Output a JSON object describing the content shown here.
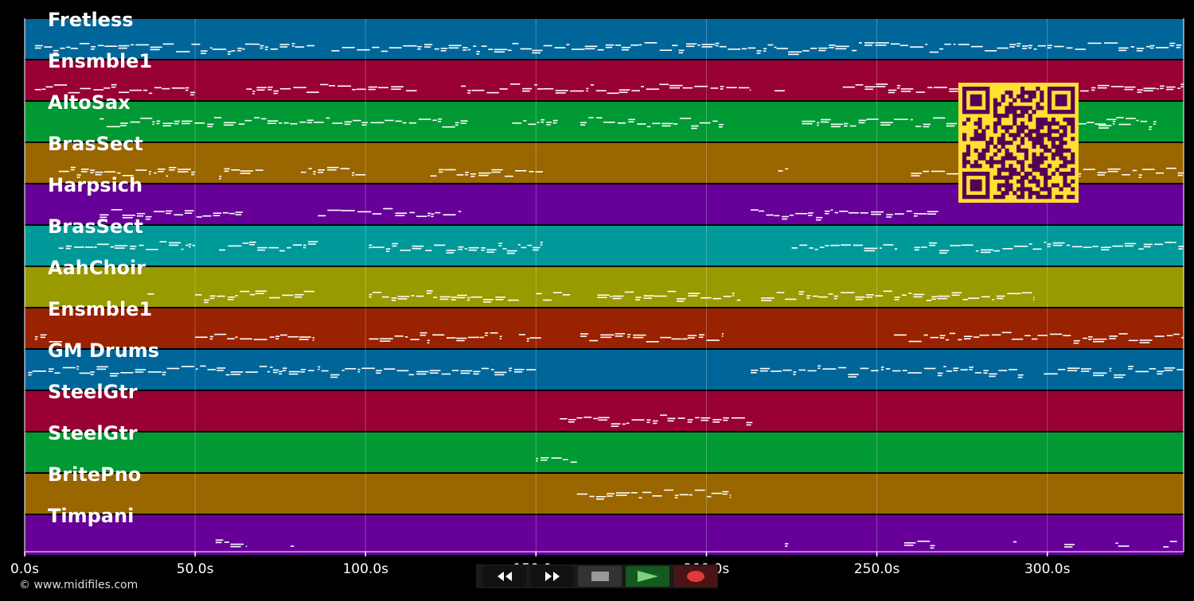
{
  "tracks": [
    {
      "name": "Fretless",
      "color": "#006699"
    },
    {
      "name": "Ensmble1",
      "color": "#990033"
    },
    {
      "name": "AltoSax",
      "color": "#009933"
    },
    {
      "name": "BrasSect",
      "color": "#996600"
    },
    {
      "name": "Harpsich",
      "color": "#660099"
    },
    {
      "name": "BrasSect",
      "color": "#009999"
    },
    {
      "name": "AahChoir",
      "color": "#999900"
    },
    {
      "name": "Ensmble1",
      "color": "#992200"
    },
    {
      "name": "GM Drums",
      "color": "#006699"
    },
    {
      "name": "SteelGtr",
      "color": "#990033"
    },
    {
      "name": "SteelGtr",
      "color": "#009933"
    },
    {
      "name": "BritePno",
      "color": "#996600"
    },
    {
      "name": "Timpani",
      "color": "#660099"
    }
  ],
  "time_axis": {
    "min": 0,
    "max": 340,
    "ticks": [
      "0.0s",
      "50.0s",
      "100.0s",
      "150.0s",
      "200.0s",
      "250.0s",
      "300.0s"
    ]
  },
  "copyright": "© www.midifiles.com",
  "controls": {
    "rewind": "rewind-icon",
    "fast_forward": "fast-forward-icon",
    "stop": "stop-icon",
    "play": "play-icon",
    "record": "record-icon"
  },
  "qr_colors": {
    "background": "#ffe033",
    "foreground": "#550055"
  },
  "note_activity": [
    [
      [
        3,
        85
      ],
      [
        90,
        340
      ]
    ],
    [
      [
        3,
        50
      ],
      [
        65,
        115
      ],
      [
        128,
        213
      ],
      [
        220,
        223
      ],
      [
        240,
        340
      ]
    ],
    [
      [
        22,
        130
      ],
      [
        143,
        157
      ],
      [
        163,
        205
      ],
      [
        228,
        325
      ],
      [
        315,
        332
      ]
    ],
    [
      [
        10,
        50
      ],
      [
        57,
        70
      ],
      [
        81,
        100
      ],
      [
        119,
        152
      ],
      [
        221,
        224
      ],
      [
        260,
        340
      ]
    ],
    [
      [
        22,
        64
      ],
      [
        86,
        128
      ],
      [
        213,
        268
      ]
    ],
    [
      [
        10,
        50
      ],
      [
        57,
        86
      ],
      [
        101,
        152
      ],
      [
        225,
        256
      ],
      [
        261,
        340
      ]
    ],
    [
      [
        36,
        38
      ],
      [
        50,
        85
      ],
      [
        101,
        145
      ],
      [
        150,
        160
      ],
      [
        168,
        210
      ],
      [
        216,
        296
      ]
    ],
    [
      [
        3,
        11
      ],
      [
        50,
        85
      ],
      [
        101,
        140
      ],
      [
        145,
        152
      ],
      [
        163,
        205
      ],
      [
        255,
        340
      ]
    ],
    [
      [
        1,
        85
      ],
      [
        86,
        150
      ],
      [
        213,
        293
      ],
      [
        299,
        340
      ]
    ],
    [
      [
        157,
        214
      ]
    ],
    [
      [
        150,
        162
      ]
    ],
    [
      [
        162,
        207
      ]
    ],
    [
      [
        56,
        65
      ],
      [
        78,
        79
      ],
      [
        223,
        224
      ],
      [
        258,
        267
      ],
      [
        290,
        291
      ],
      [
        305,
        308
      ],
      [
        320,
        324
      ],
      [
        334,
        338
      ]
    ]
  ]
}
